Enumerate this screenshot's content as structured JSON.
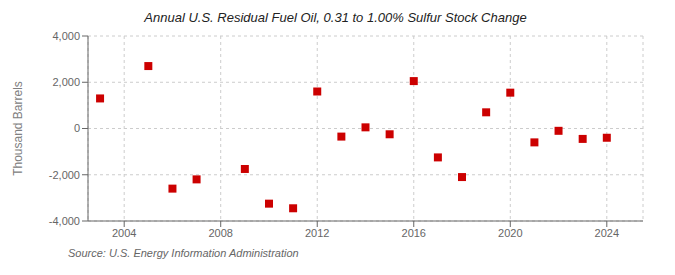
{
  "chart_data": {
    "type": "scatter",
    "title": "Annual U.S. Residual Fuel Oil, 0.31 to 1.00% Sulfur Stock Change",
    "ylabel": "Thousand Barrels",
    "annotation": "Source: U.S. Energy Information Administration",
    "x": [
      2003,
      2005,
      2006,
      2007,
      2009,
      2010,
      2011,
      2012,
      2013,
      2014,
      2015,
      2016,
      2017,
      2018,
      2019,
      2020,
      2021,
      2022,
      2023,
      2024
    ],
    "values": [
      1300,
      2700,
      -2600,
      -2200,
      -1750,
      -3250,
      -3450,
      1600,
      -350,
      50,
      -250,
      2050,
      -1250,
      -2100,
      700,
      1550,
      -600,
      -100,
      -450,
      -400
    ],
    "color": "#cc0000",
    "marker": "square",
    "xlim": [
      2002.5,
      2025.5
    ],
    "xticks": [
      2004,
      2008,
      2012,
      2016,
      2020,
      2024
    ],
    "ylim": [
      -4000,
      4000
    ],
    "yticks": [
      {
        "value": -4000,
        "label": "-4,000"
      },
      {
        "value": -2000,
        "label": "-2,000"
      },
      0,
      {
        "value": 2000,
        "label": "2,000"
      },
      {
        "value": 4000,
        "label": "4,000"
      }
    ],
    "grid": true
  }
}
